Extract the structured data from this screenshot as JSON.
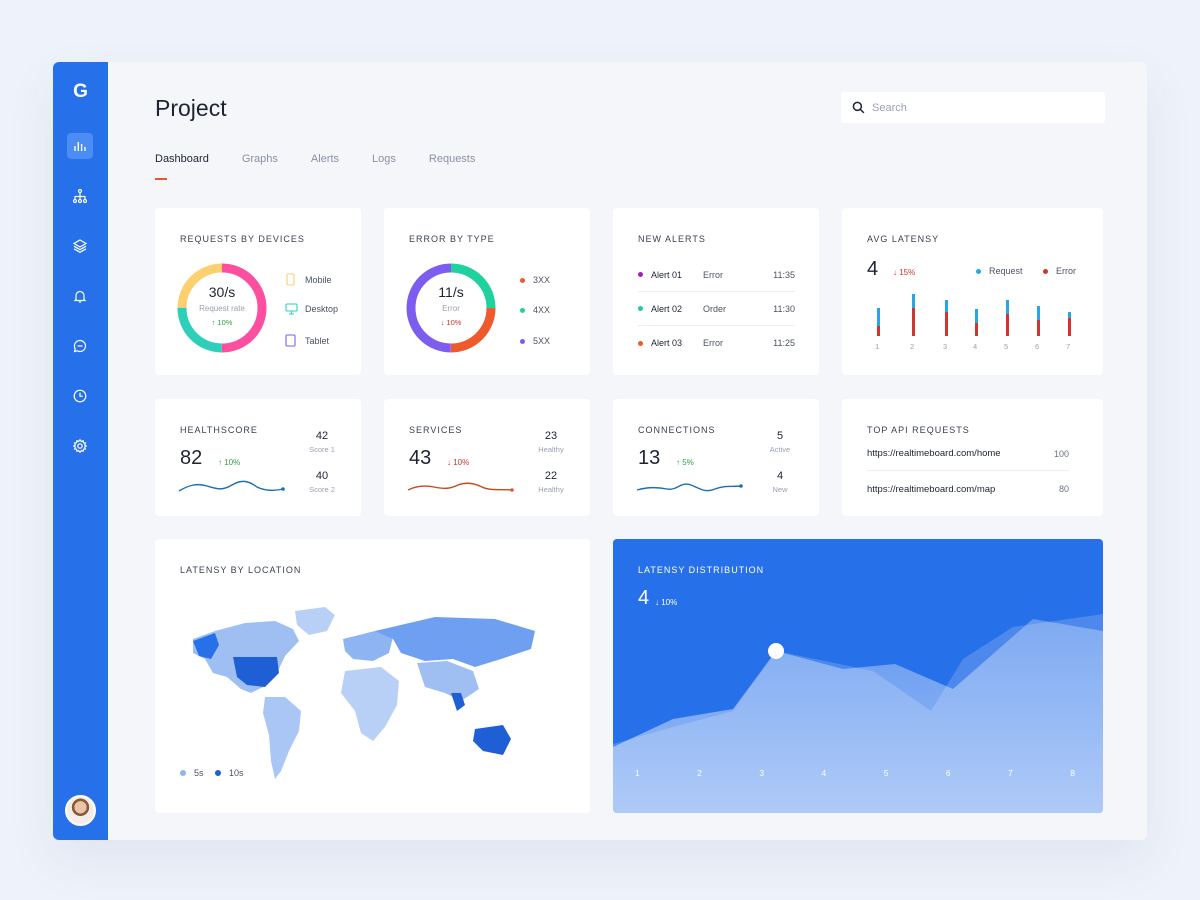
{
  "sidebar": {
    "logo": "G",
    "items": [
      {
        "name": "analytics",
        "icon": "bar-chart-icon",
        "active": true
      },
      {
        "name": "hierarchy",
        "icon": "sitemap-icon"
      },
      {
        "name": "layers",
        "icon": "layers-icon"
      },
      {
        "name": "notifications",
        "icon": "bell-icon"
      },
      {
        "name": "messages",
        "icon": "chat-icon"
      },
      {
        "name": "history",
        "icon": "clock-icon"
      },
      {
        "name": "settings",
        "icon": "gear-icon"
      }
    ]
  },
  "header": {
    "title": "Project",
    "search_placeholder": "Search",
    "tabs": [
      "Dashboard",
      "Graphs",
      "Alerts",
      "Logs",
      "Requests"
    ],
    "active_tab": "Dashboard"
  },
  "requests_by_devices": {
    "title": "REQUESTS BY DEVICES",
    "center_value": "30/s",
    "center_label": "Request rate",
    "delta": "↑ 10%",
    "legend": [
      "Mobile",
      "Desktop",
      "Tablet"
    ]
  },
  "error_by_type": {
    "title": "ERROR BY TYPE",
    "center_value": "11/s",
    "center_label": "Error",
    "delta": "↓ 10%",
    "legend": [
      "3XX",
      "4XX",
      "5XX"
    ]
  },
  "new_alerts": {
    "title": "NEW ALERTS",
    "rows": [
      {
        "name": "Alert 01",
        "type": "Error",
        "time": "11:35",
        "color": "#9b27b0"
      },
      {
        "name": "Alert 02",
        "type": "Order",
        "time": "11:30",
        "color": "#1fc8a8"
      },
      {
        "name": "Alert 03",
        "type": "Error",
        "time": "11:25",
        "color": "#ea5a2a"
      }
    ]
  },
  "avg_latency": {
    "title": "AVG LATENSY",
    "value": "4",
    "delta": "↓ 15%",
    "legend": [
      "Request",
      "Error"
    ],
    "categories": [
      "1",
      "2",
      "3",
      "4",
      "5",
      "6",
      "7"
    ]
  },
  "healthscore": {
    "title": "HEALTHSCORE",
    "value": "82",
    "delta": "↑ 10%",
    "stats": [
      {
        "value": "42",
        "label": "Score 1"
      },
      {
        "value": "40",
        "label": "Score 2"
      }
    ]
  },
  "services": {
    "title": "SERVICES",
    "value": "43",
    "delta": "↓ 10%",
    "stats": [
      {
        "value": "23",
        "label": "Healthy"
      },
      {
        "value": "22",
        "label": "Healthy"
      }
    ]
  },
  "connections": {
    "title": "CONNECTIONS",
    "value": "13",
    "delta": "↑ 5%",
    "stats": [
      {
        "value": "5",
        "label": "Active"
      },
      {
        "value": "4",
        "label": "New"
      }
    ]
  },
  "top_api": {
    "title": "TOP API REQUESTS",
    "rows": [
      {
        "url": "https://realtimeboard.com/home",
        "count": "100"
      },
      {
        "url": "https://realtimeboard.com/map",
        "count": "80"
      }
    ]
  },
  "latency_location": {
    "title": "LATENSY BY LOCATION",
    "legend": [
      "5s",
      "10s"
    ]
  },
  "latency_distribution": {
    "title": "LATENSY DISTRIBUTION",
    "value": "4",
    "delta": "↓ 10%",
    "categories": [
      "1",
      "2",
      "3",
      "4",
      "5",
      "6",
      "7",
      "8"
    ]
  },
  "colors": {
    "primary": "#2670ea",
    "mobile": "#fd4fa0",
    "desktop": "#2dcfb8",
    "tablet": "#fdd06f",
    "err_3xx": "#1fd19c",
    "err_4xx": "#ee5a2c",
    "err_5xx": "#7d5cf0",
    "request": "#26a6e6",
    "error": "#d0342c"
  }
}
